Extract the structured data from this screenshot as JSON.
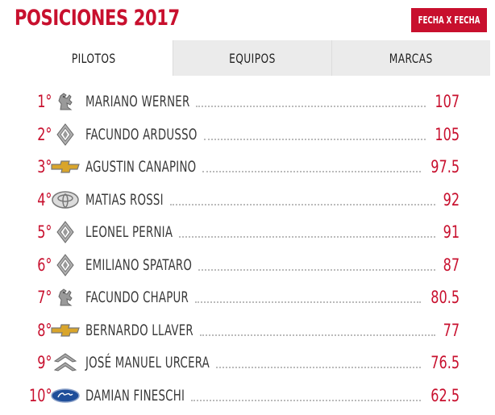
{
  "title": "POSICIONES 2017",
  "fecha_button": "FECHA X FECHA",
  "tabs": [
    {
      "label": "PILOTOS",
      "active": true
    },
    {
      "label": "EQUIPOS",
      "active": false
    },
    {
      "label": "MARCAS",
      "active": false
    }
  ],
  "colors": {
    "accent": "#c8102e",
    "text": "#3a3a3a",
    "tab_inactive": "#ebebeb"
  },
  "standings": [
    {
      "pos": "1°",
      "brand": "peugeot-icon",
      "name": "MARIANO WERNER",
      "points": "107"
    },
    {
      "pos": "2°",
      "brand": "renault-icon",
      "name": "FACUNDO ARDUSSO",
      "points": "105"
    },
    {
      "pos": "3°",
      "brand": "chevrolet-icon",
      "name": "AGUSTIN CANAPINO",
      "points": "97.5"
    },
    {
      "pos": "4°",
      "brand": "toyota-icon",
      "name": "MATIAS ROSSI",
      "points": "92"
    },
    {
      "pos": "5°",
      "brand": "renault-icon",
      "name": "LEONEL PERNIA",
      "points": "91"
    },
    {
      "pos": "6°",
      "brand": "renault-icon",
      "name": "EMILIANO SPATARO",
      "points": "87"
    },
    {
      "pos": "7°",
      "brand": "peugeot-icon",
      "name": "FACUNDO CHAPUR",
      "points": "80.5"
    },
    {
      "pos": "8°",
      "brand": "chevrolet-icon",
      "name": "BERNARDO LLAVER",
      "points": "77"
    },
    {
      "pos": "9°",
      "brand": "citroen-icon",
      "name": "JOSÉ MANUEL URCERA",
      "points": "76.5"
    },
    {
      "pos": "10°",
      "brand": "ford-icon",
      "name": "DAMIAN FINESCHI",
      "points": "62.5"
    }
  ]
}
